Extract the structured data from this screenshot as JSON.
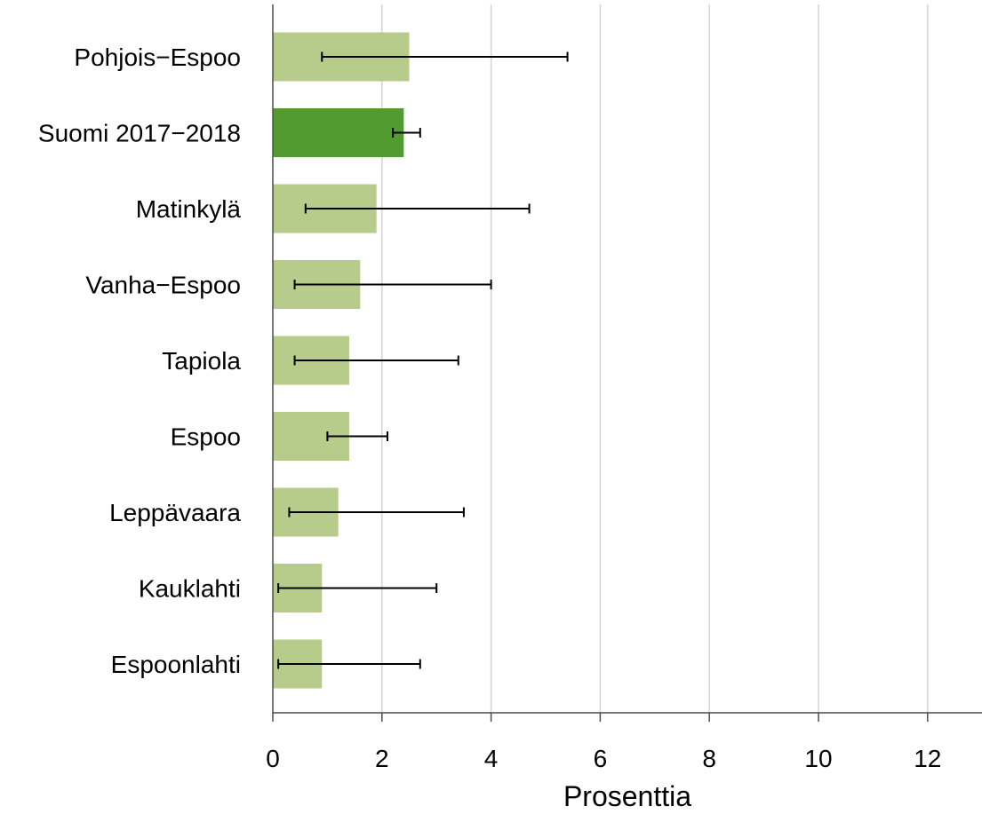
{
  "chart_data": {
    "type": "bar",
    "orientation": "horizontal",
    "title": "",
    "xlabel": "Prosenttia",
    "ylabel": "",
    "xlim": [
      0,
      12.9
    ],
    "xticks": [
      0,
      2,
      4,
      6,
      8,
      10,
      12
    ],
    "grid": "vertical",
    "legend": "none",
    "colors": {
      "bar": "#b7cb8b",
      "highlight": "#529b30",
      "grid": "#d3d3d3",
      "axis": "#4d4d4d",
      "error_bar": "#000000"
    },
    "categories": [
      "Pohjois−Espoo",
      "Suomi 2017−2018",
      "Matinkylä",
      "Vanha−Espoo",
      "Tapiola",
      "Espoo",
      "Leppävaara",
      "Kauklahti",
      "Espoonlahti"
    ],
    "values": [
      2.5,
      2.4,
      1.9,
      1.6,
      1.4,
      1.4,
      1.2,
      0.9,
      0.9
    ],
    "error_low": [
      0.9,
      2.2,
      0.6,
      0.4,
      0.4,
      1.0,
      0.3,
      0.1,
      0.1
    ],
    "error_high": [
      5.4,
      2.7,
      4.7,
      4.0,
      3.4,
      2.1,
      3.5,
      3.0,
      2.7
    ],
    "highlight": [
      false,
      true,
      false,
      false,
      false,
      false,
      false,
      false,
      false
    ]
  }
}
